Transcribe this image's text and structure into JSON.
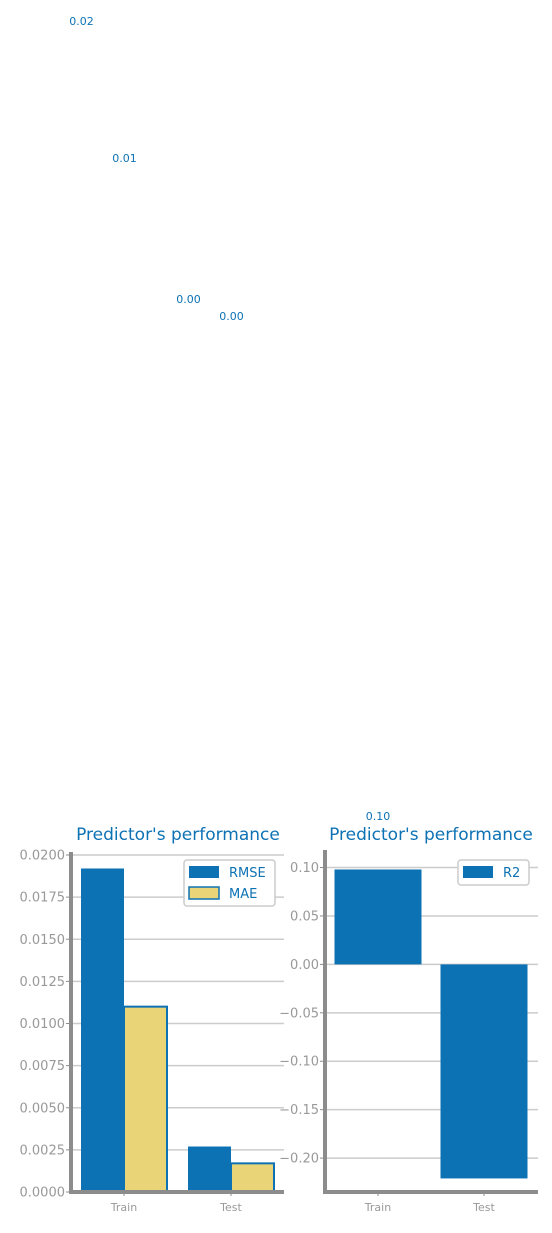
{
  "colors": {
    "primary": "#0d72b4",
    "secondary": "#e9d478",
    "axis": "#8c8c8c",
    "grid": "#cccccc",
    "tick_label": "#999999"
  },
  "chart_data": [
    {
      "type": "bar",
      "title": "Predictor's performance",
      "categories": [
        "Train",
        "Test"
      ],
      "series": [
        {
          "name": "RMSE",
          "values": [
            0.0192,
            0.0027
          ]
        },
        {
          "name": "MAE",
          "values": [
            0.011,
            0.0017
          ]
        }
      ],
      "data_labels": [
        {
          "text": "0.02",
          "series": "RMSE",
          "category": "Train"
        },
        {
          "text": "0.01",
          "series": "MAE",
          "category": "Train"
        },
        {
          "text": "0.00",
          "series": "RMSE",
          "category": "Test"
        },
        {
          "text": "0.00",
          "series": "MAE",
          "category": "Test"
        }
      ],
      "ylim": [
        0,
        0.02
      ],
      "yticks": [
        "0.0000",
        "0.0025",
        "0.0050",
        "0.0075",
        "0.0100",
        "0.0125",
        "0.0150",
        "0.0175",
        "0.0200"
      ],
      "ytick_values": [
        0,
        0.0025,
        0.005,
        0.0075,
        0.01,
        0.0125,
        0.015,
        0.0175,
        0.02
      ],
      "xlabel": "",
      "ylabel": "",
      "grid": "horizontal",
      "legend": "top-right"
    },
    {
      "type": "bar",
      "title": "Predictor's performance",
      "categories": [
        "Train",
        "Test"
      ],
      "series": [
        {
          "name": "R2",
          "values": [
            0.098,
            -0.221
          ]
        }
      ],
      "data_labels": [
        {
          "text": "0.10",
          "series": "R2",
          "category": "Train"
        }
      ],
      "ylim": [
        -0.235,
        0.115
      ],
      "yticks": [
        "−0.20",
        "−0.15",
        "−0.10",
        "−0.05",
        "0.00",
        "0.05",
        "0.10"
      ],
      "ytick_values": [
        -0.2,
        -0.15,
        -0.1,
        -0.05,
        0,
        0.05,
        0.1
      ],
      "xlabel": "",
      "ylabel": "",
      "grid": "horizontal",
      "legend": "top-right"
    }
  ]
}
